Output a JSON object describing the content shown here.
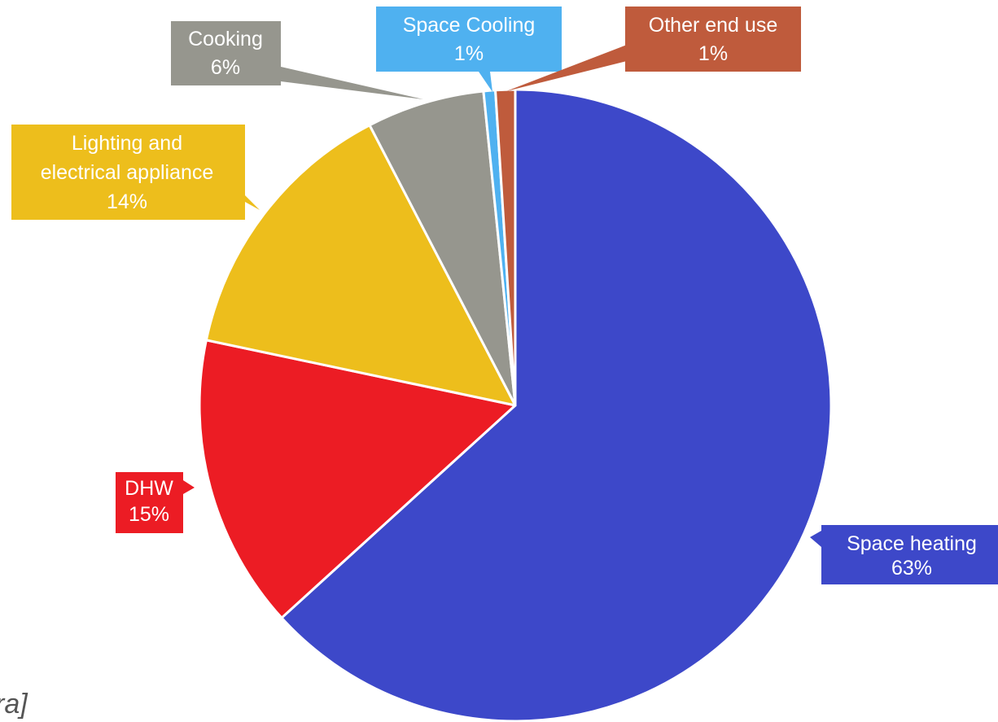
{
  "chart_data": {
    "type": "pie",
    "title": "",
    "start_angle_deg": 0,
    "direction": "clockwise",
    "slices": [
      {
        "label": "Space heating",
        "value": 63,
        "value_label": "63%",
        "color": "#3D48C9"
      },
      {
        "label": "DHW",
        "value": 15,
        "value_label": "15%",
        "color": "#EC1C24"
      },
      {
        "label": "Lighting and electrical appliance",
        "value": 14,
        "value_label": "14%",
        "color": "#EDBE1C"
      },
      {
        "label": "Cooking",
        "value": 6,
        "value_label": "6%",
        "color": "#96968E"
      },
      {
        "label": "Space Cooling",
        "value": 0.6,
        "value_label": "1%",
        "color": "#4FB1F0"
      },
      {
        "label": "Other end use",
        "value": 1.0,
        "value_label": "1%",
        "color": "#BF5B3C"
      }
    ]
  },
  "footnote": "ra]"
}
